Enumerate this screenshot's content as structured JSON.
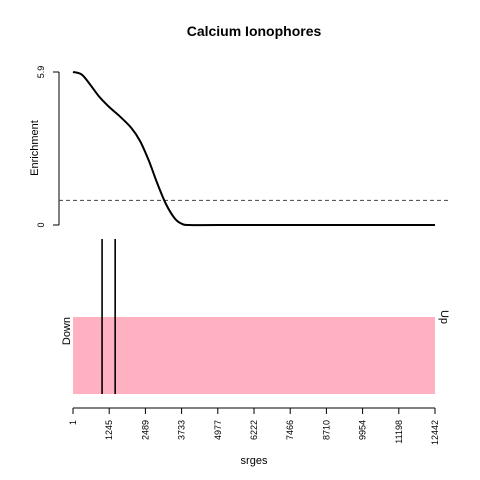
{
  "chart_data": {
    "type": "line",
    "title": "Calcium Ionophores",
    "xlabel": "srges",
    "ylabel": "Enrichment",
    "x_range": [
      1,
      12442
    ],
    "x_ticks": [
      "1",
      "1245",
      "2489",
      "3733",
      "4977",
      "6222",
      "7466",
      "8710",
      "9954",
      "11198",
      "12442"
    ],
    "x_tick_values": [
      1,
      1245,
      2489,
      3733,
      4977,
      6222,
      7466,
      8710,
      9954,
      11198,
      12442
    ],
    "enrichment": {
      "ylim": [
        0,
        5.9
      ],
      "y_ticks": [
        "0",
        "5.9"
      ],
      "y_tick_values": [
        0,
        5.9
      ],
      "reference_line": 0.95,
      "curve": {
        "x": [
          1,
          300,
          600,
          900,
          1245,
          1600,
          2000,
          2300,
          2600,
          2900,
          3200,
          3500,
          3733,
          4000,
          5000,
          8000,
          12442
        ],
        "y": [
          5.9,
          5.8,
          5.4,
          4.95,
          4.55,
          4.2,
          3.75,
          3.25,
          2.5,
          1.6,
          0.8,
          0.25,
          0.05,
          0.0,
          0.0,
          0.0,
          0.0
        ]
      }
    },
    "barcode": {
      "left_label": "Down",
      "right_label": "Up",
      "band_color": "#ffb0c1",
      "hits": [
        1000,
        1450
      ]
    }
  }
}
